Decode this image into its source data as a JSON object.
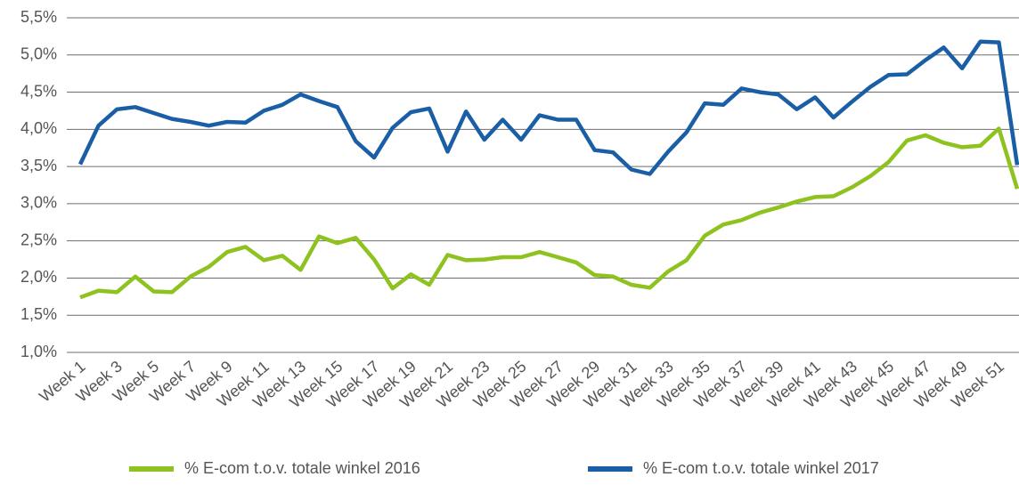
{
  "chart_data": {
    "type": "line",
    "categories": [
      "Week 1",
      null,
      "Week 3",
      null,
      "Week 5",
      null,
      "Week 7",
      null,
      "Week 9",
      null,
      "Week 11",
      null,
      "Week 13",
      null,
      "Week 15",
      null,
      "Week 17",
      null,
      "Week 19",
      null,
      "Week 21",
      null,
      "Week 23",
      null,
      "Week 25",
      null,
      "Week 27",
      null,
      "Week 29",
      null,
      "Week 31",
      null,
      "Week 33",
      null,
      "Week 35",
      null,
      "Week 37",
      null,
      "Week 39",
      null,
      "Week 41",
      null,
      "Week 43",
      null,
      "Week 45",
      null,
      "Week 47",
      null,
      "Week 49",
      null,
      "Week 51",
      null
    ],
    "series": [
      {
        "name": "% E-com t.o.v. totale winkel 2016",
        "color": "#8dc21f",
        "values": [
          1.74,
          1.83,
          1.81,
          2.02,
          1.82,
          1.81,
          2.02,
          2.15,
          2.35,
          2.42,
          2.24,
          2.3,
          2.11,
          2.56,
          2.47,
          2.54,
          2.25,
          1.86,
          2.05,
          1.91,
          2.31,
          2.24,
          2.25,
          2.28,
          2.28,
          2.35,
          2.28,
          2.21,
          2.04,
          2.02,
          1.91,
          1.87,
          2.09,
          2.24,
          2.57,
          2.72,
          2.78,
          2.88,
          2.95,
          3.03,
          3.09,
          3.1,
          3.22,
          3.37,
          3.56,
          3.85,
          3.92,
          3.82,
          3.76,
          3.78,
          4.01,
          3.2
        ]
      },
      {
        "name": "% E-com t.o.v. totale winkel 2017",
        "color": "#1a5fa6",
        "values": [
          3.53,
          4.05,
          4.27,
          4.3,
          4.22,
          4.14,
          4.1,
          4.05,
          4.1,
          4.09,
          4.25,
          4.33,
          4.47,
          4.38,
          4.3,
          3.84,
          3.62,
          4.02,
          4.23,
          4.28,
          3.7,
          4.24,
          3.86,
          4.13,
          3.86,
          4.19,
          4.13,
          4.13,
          3.72,
          3.69,
          3.46,
          3.4,
          3.7,
          3.96,
          4.35,
          4.33,
          4.55,
          4.5,
          4.47,
          4.27,
          4.43,
          4.16,
          4.37,
          4.57,
          4.73,
          4.74,
          4.93,
          5.1,
          4.82,
          5.18,
          5.17,
          3.52
        ]
      }
    ],
    "ylim": [
      1.0,
      5.5
    ],
    "yticks": [
      {
        "value": 1.0,
        "label": "1,0%"
      },
      {
        "value": 1.5,
        "label": "1,5%"
      },
      {
        "value": 2.0,
        "label": "2,0%"
      },
      {
        "value": 2.5,
        "label": "2,5%"
      },
      {
        "value": 3.0,
        "label": "3,0%"
      },
      {
        "value": 3.5,
        "label": "3,5%"
      },
      {
        "value": 4.0,
        "label": "4,0%"
      },
      {
        "value": 4.5,
        "label": "4,5%"
      },
      {
        "value": 5.0,
        "label": "5,0%"
      },
      {
        "value": 5.5,
        "label": "5,5%"
      }
    ],
    "grid": true,
    "legend": "bottom"
  }
}
